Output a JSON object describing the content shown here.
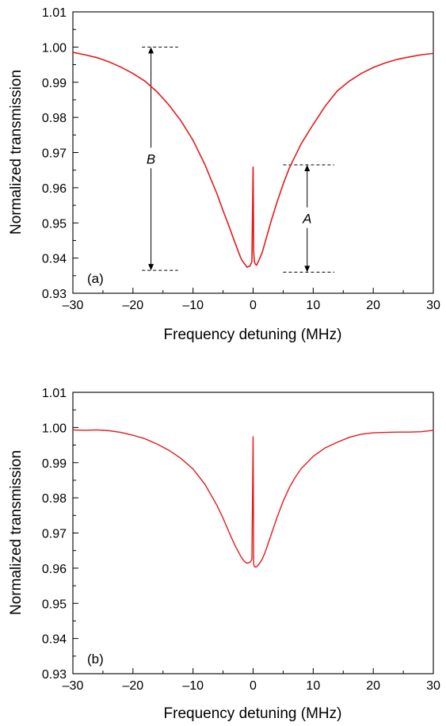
{
  "chart_data": [
    {
      "type": "line",
      "panel_label": "(a)",
      "xlabel": "Frequency detuning (MHz)",
      "ylabel": "Normalized transmission",
      "xlim": [
        -30,
        30
      ],
      "ylim": [
        0.93,
        1.01
      ],
      "xticks": [
        -30,
        -20,
        -10,
        0,
        10,
        20,
        30
      ],
      "xtick_labels": [
        "–30",
        "–20",
        "–10",
        "0",
        "10",
        "20",
        "30"
      ],
      "yticks": [
        0.93,
        0.94,
        0.95,
        0.96,
        0.97,
        0.98,
        0.99,
        1.0,
        1.01
      ],
      "ytick_labels": [
        "0.93",
        "0.94",
        "0.95",
        "0.96",
        "0.97",
        "0.98",
        "0.99",
        "1.00",
        "1.01"
      ],
      "grid": false,
      "line_color": "#e31a1c",
      "series": [
        {
          "x": [
            -30,
            -28,
            -26,
            -24,
            -22,
            -20,
            -18,
            -16,
            -14,
            -12,
            -10,
            -8,
            -6,
            -5,
            -4,
            -3,
            -2,
            -1.5,
            -1,
            -0.5,
            -0.2,
            0,
            0.1,
            0.2,
            0.4,
            0.6,
            1,
            1.5,
            2,
            3,
            4,
            5,
            6,
            7,
            8,
            10,
            12,
            14,
            16,
            18,
            20,
            22,
            24,
            26,
            28,
            30
          ],
          "y": [
            0.9985,
            0.9978,
            0.997,
            0.9958,
            0.9943,
            0.9925,
            0.9903,
            0.9873,
            0.9835,
            0.979,
            0.9735,
            0.9665,
            0.9582,
            0.9535,
            0.949,
            0.9443,
            0.9398,
            0.9385,
            0.9374,
            0.9378,
            0.939,
            0.966,
            0.942,
            0.939,
            0.9382,
            0.938,
            0.9395,
            0.9415,
            0.9445,
            0.9505,
            0.956,
            0.961,
            0.9655,
            0.969,
            0.9725,
            0.978,
            0.9832,
            0.9875,
            0.9903,
            0.9925,
            0.9942,
            0.9955,
            0.9965,
            0.9972,
            0.9978,
            0.9982
          ]
        }
      ],
      "annotations": [
        {
          "label": "B",
          "x": -17,
          "y_top": 1.0,
          "y_bottom": 0.9365,
          "dash_from": -18.5,
          "dash_to": -12.5
        },
        {
          "label": "A",
          "x": 9,
          "y_top": 0.9665,
          "y_bottom": 0.936,
          "dash_from": 5,
          "dash_to": 13.5
        }
      ]
    },
    {
      "type": "line",
      "panel_label": "(b)",
      "xlabel": "Frequency detuning (MHz)",
      "ylabel": "Normalized transmission",
      "xlim": [
        -30,
        30
      ],
      "ylim": [
        0.93,
        1.01
      ],
      "xticks": [
        -30,
        -20,
        -10,
        0,
        10,
        20,
        30
      ],
      "xtick_labels": [
        "–30",
        "–20",
        "–10",
        "0",
        "10",
        "20",
        "30"
      ],
      "yticks": [
        0.93,
        0.94,
        0.95,
        0.96,
        0.97,
        0.98,
        0.99,
        1.0,
        1.01
      ],
      "ytick_labels": [
        "0.93",
        "0.94",
        "0.95",
        "0.96",
        "0.97",
        "0.98",
        "0.99",
        "1.00",
        "1.01"
      ],
      "grid": false,
      "line_color": "#e31a1c",
      "series": [
        {
          "x": [
            -30,
            -28,
            -26,
            -24,
            -22,
            -20,
            -18,
            -16,
            -14,
            -12,
            -10,
            -8,
            -6,
            -5,
            -4,
            -3,
            -2,
            -1.5,
            -1,
            -0.5,
            -0.2,
            0,
            0.1,
            0.2,
            0.4,
            0.6,
            1,
            1.5,
            2,
            3,
            4,
            5,
            6,
            7,
            8,
            10,
            12,
            14,
            16,
            18,
            20,
            22,
            24,
            26,
            28,
            30
          ],
          "y": [
            0.9993,
            0.9992,
            0.9993,
            0.9991,
            0.9986,
            0.9978,
            0.9968,
            0.9953,
            0.9935,
            0.9912,
            0.9882,
            0.9838,
            0.9778,
            0.9742,
            0.9702,
            0.9664,
            0.9632,
            0.962,
            0.9614,
            0.9617,
            0.9625,
            0.9975,
            0.9612,
            0.9605,
            0.9603,
            0.9604,
            0.9612,
            0.9625,
            0.9645,
            0.9695,
            0.9745,
            0.979,
            0.9828,
            0.9858,
            0.9883,
            0.9918,
            0.9942,
            0.9958,
            0.9972,
            0.9981,
            0.9985,
            0.9986,
            0.9987,
            0.9987,
            0.9988,
            0.9992
          ]
        }
      ],
      "annotations": []
    }
  ]
}
